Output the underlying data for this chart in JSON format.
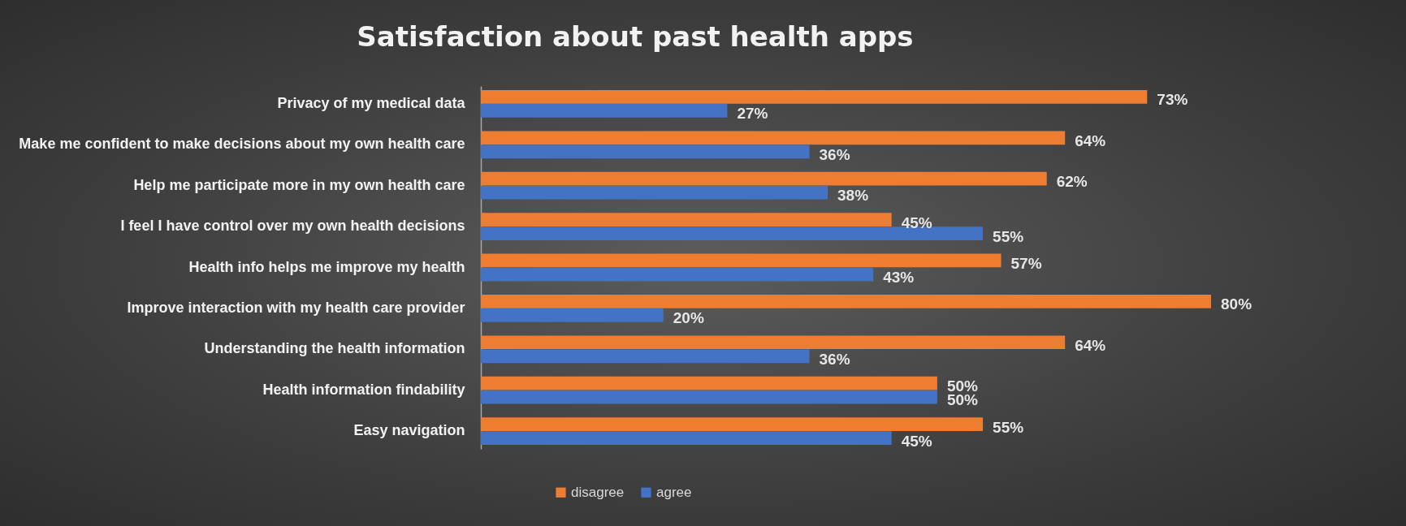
{
  "chart_data": {
    "type": "bar",
    "orientation": "horizontal",
    "title": "Satisfaction about past health apps",
    "categories": [
      "Privacy of my medical data",
      "Make me confident to make decisions about my own health care",
      "Help me participate more in my own health care",
      "I feel I have control over my own health decisions",
      "Health info helps me improve my health",
      "Improve interaction with my health care provider",
      "Understanding the health information",
      "Health information findability",
      "Easy navigation"
    ],
    "series": [
      {
        "name": "disagree",
        "color": "#ed7d31",
        "values": [
          73,
          64,
          62,
          45,
          57,
          80,
          64,
          50,
          55
        ],
        "value_labels": [
          "73%",
          "64%",
          "62%",
          "45%",
          "57%",
          "80%",
          "64%",
          "50%",
          "55%"
        ]
      },
      {
        "name": "agree",
        "color": "#4472c4",
        "values": [
          27,
          36,
          38,
          55,
          43,
          20,
          36,
          50,
          45
        ],
        "value_labels": [
          "27%",
          "36%",
          "38%",
          "55%",
          "43%",
          "20%",
          "36%",
          "50%",
          "45%"
        ]
      }
    ],
    "legend": "bottom",
    "grid": false
  }
}
